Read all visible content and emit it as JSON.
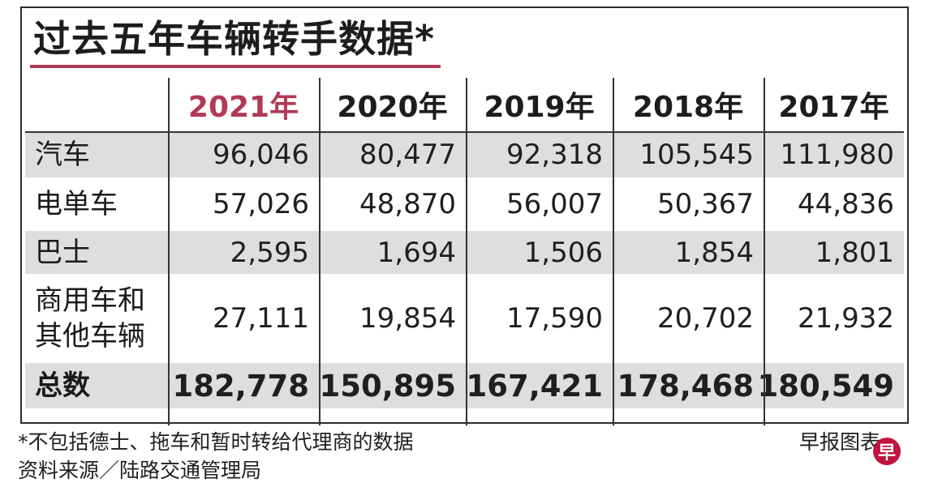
{
  "title": "过去五年车辆转手数据*",
  "colors": {
    "accent": "#b03a55",
    "row_shade": "#dedede",
    "logo": "#c0143c"
  },
  "table": {
    "years": [
      "2021年",
      "2020年",
      "2019年",
      "2018年",
      "2017年"
    ],
    "rows": [
      {
        "label": "汽车",
        "values": [
          "96,046",
          "80,477",
          "92,318",
          "105,545",
          "111,980"
        ]
      },
      {
        "label": "电单车",
        "values": [
          "57,026",
          "48,870",
          "56,007",
          "50,367",
          "44,836"
        ]
      },
      {
        "label": "巴士",
        "values": [
          "2,595",
          "1,694",
          "1,506",
          "1,854",
          "1,801"
        ]
      },
      {
        "label_line1": "商用车和",
        "label_line2": "其他车辆",
        "values": [
          "27,111",
          "19,854",
          "17,590",
          "20,702",
          "21,932"
        ]
      },
      {
        "label": "总数",
        "values": [
          "182,778",
          "150,895",
          "167,421",
          "178,468",
          "180,549"
        ]
      }
    ]
  },
  "footnote": "*不包括德士、拖车和暂时转给代理商的数据",
  "source": "资料来源／陆路交通管理局",
  "credit": "早报图表",
  "logo_glyph": "早"
}
